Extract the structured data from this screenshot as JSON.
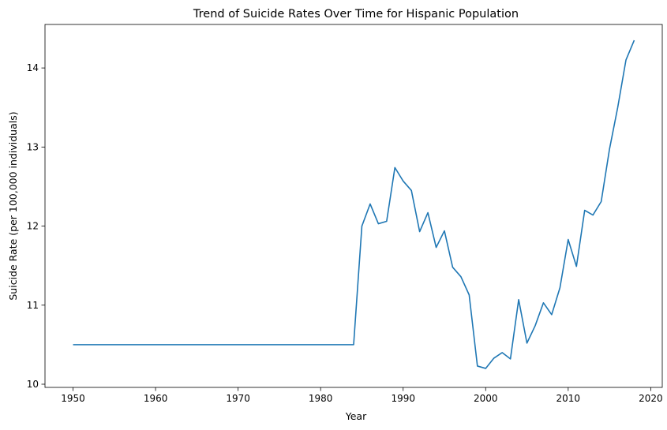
{
  "chart_data": {
    "type": "line",
    "title": "Trend of Suicide Rates Over Time for Hispanic Population",
    "xlabel": "Year",
    "ylabel": "Suicide Rate (per 100,000 individuals)",
    "xlim": [
      1946.6,
      2021.4
    ],
    "ylim": [
      9.96,
      14.55
    ],
    "xticks": [
      1950,
      1960,
      1970,
      1980,
      1990,
      2000,
      2010,
      2020
    ],
    "yticks": [
      10,
      11,
      12,
      13,
      14
    ],
    "grid": false,
    "series": [
      {
        "color": "#1f77b4",
        "x": [
          1950,
          1984,
          1985,
          1986,
          1987,
          1988,
          1989,
          1990,
          1991,
          1992,
          1993,
          1994,
          1995,
          1996,
          1997,
          1998,
          1999,
          2000,
          2001,
          2002,
          2003,
          2004,
          2005,
          2006,
          2007,
          2008,
          2009,
          2010,
          2011,
          2012,
          2013,
          2014,
          2015,
          2016,
          2017,
          2018
        ],
        "y": [
          10.5,
          10.5,
          12.0,
          12.28,
          12.03,
          12.06,
          12.74,
          12.57,
          12.45,
          11.93,
          12.17,
          11.73,
          11.94,
          11.48,
          11.36,
          11.13,
          10.23,
          10.2,
          10.33,
          10.4,
          10.32,
          11.07,
          10.52,
          10.74,
          11.03,
          10.88,
          11.22,
          11.83,
          11.49,
          12.2,
          12.14,
          12.31,
          12.97,
          13.5,
          14.1,
          14.35
        ]
      }
    ]
  }
}
